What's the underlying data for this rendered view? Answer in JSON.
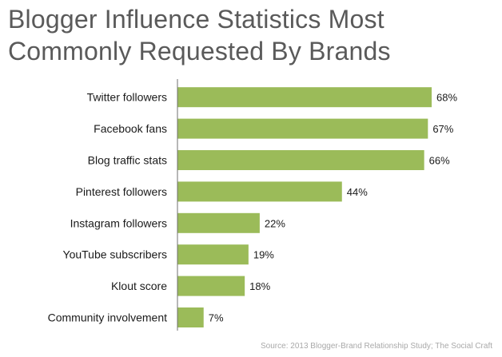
{
  "title": "Blogger Influence Statistics Most Commonly Requested By Brands",
  "source": "Source: 2013 Blogger-Brand Relationship Study; The Social Craft",
  "colors": {
    "bar": "#9bbb59",
    "axis": "#6f6f6f",
    "title": "#5a5a5a",
    "text": "#1a1a1a",
    "source": "#a9a9a9"
  },
  "chart_data": {
    "type": "bar",
    "orientation": "horizontal",
    "title": "Blogger Influence Statistics Most Commonly Requested By Brands",
    "categories": [
      "Twitter followers",
      "Facebook fans",
      "Blog traffic stats",
      "Pinterest followers",
      "Instagram followers",
      "YouTube subscribers",
      "Klout score",
      "Community involvement"
    ],
    "values": [
      68,
      67,
      66,
      44,
      22,
      19,
      18,
      7
    ],
    "value_labels": [
      "68%",
      "67%",
      "66%",
      "44%",
      "22%",
      "19%",
      "18%",
      "7%"
    ],
    "xlim": [
      0,
      70
    ],
    "xlabel": "",
    "ylabel": "",
    "grid": false,
    "legend": "none"
  }
}
